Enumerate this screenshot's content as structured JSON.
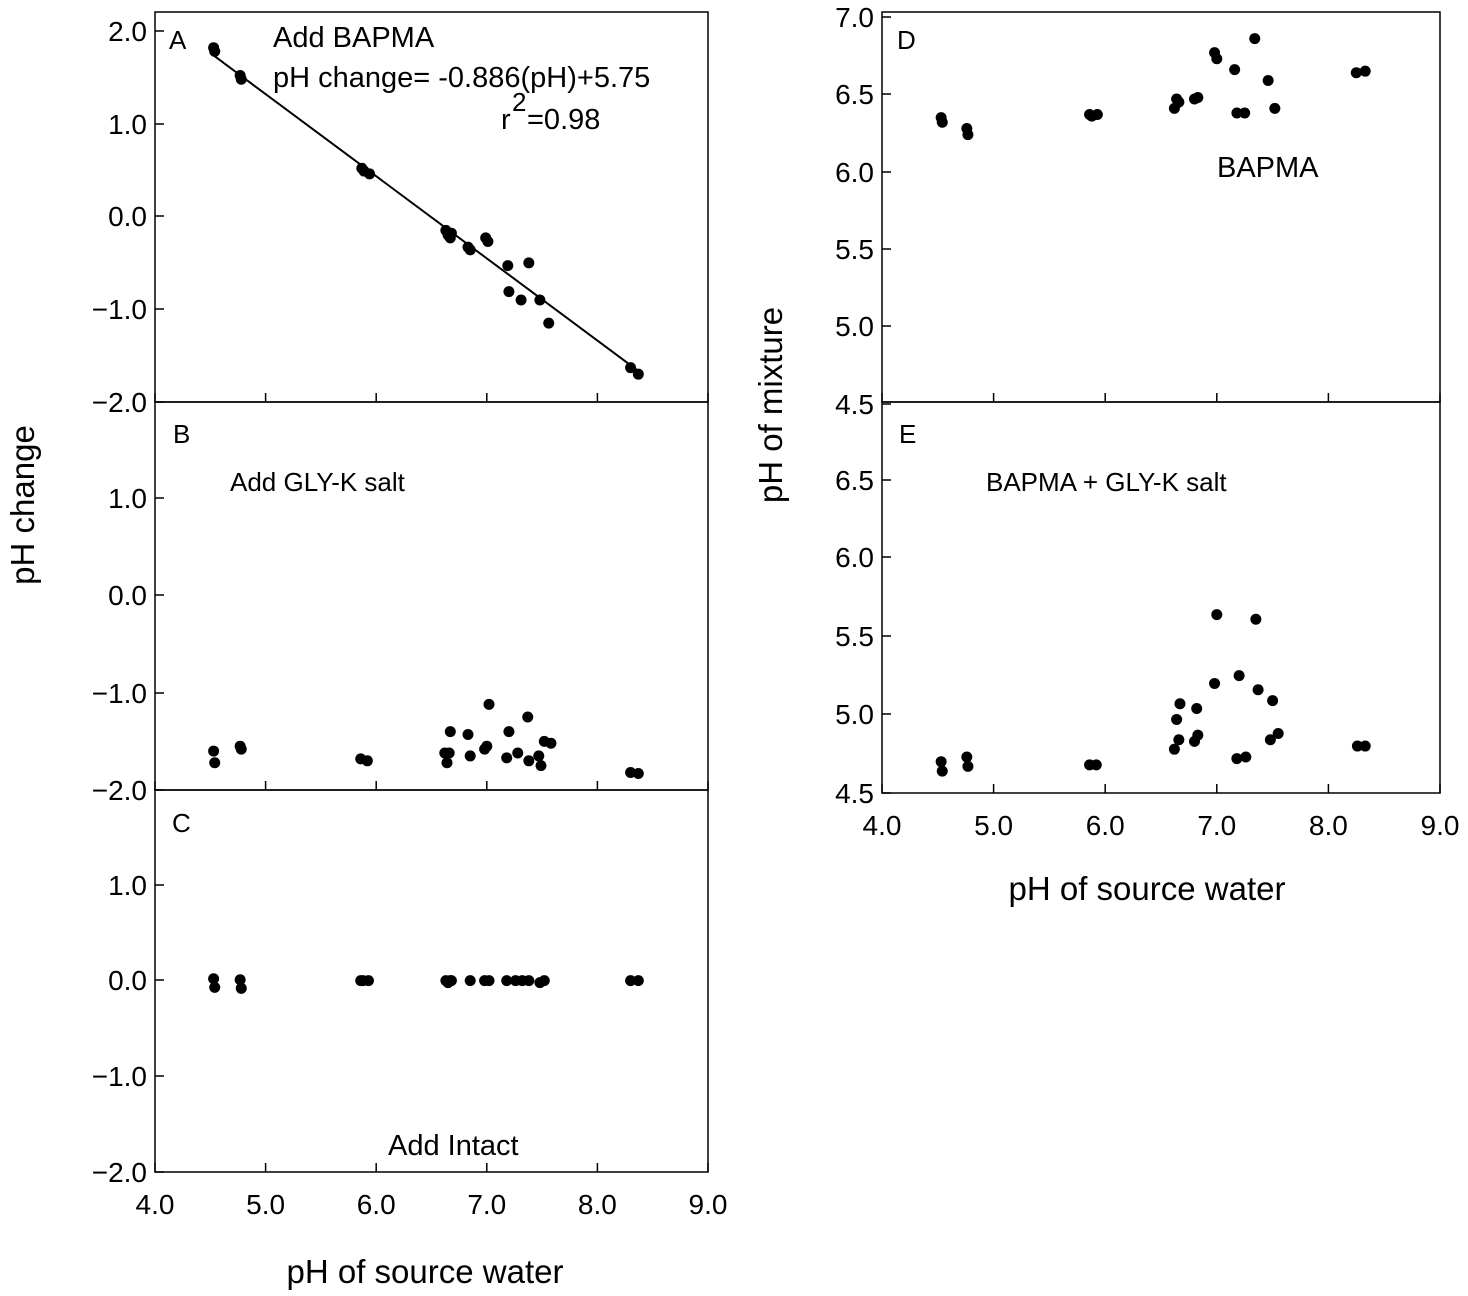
{
  "chart_data": [
    {
      "panel": "A",
      "type": "scatter",
      "panel_label": "A",
      "annotations": [
        "Add BAPMA",
        "pH change= -0.886(pH)+5.75",
        "r",
        "2",
        "=0.98"
      ],
      "ylabel": "pH change",
      "xlim": [
        4.0,
        9.0
      ],
      "ylim": [
        -2.0,
        2.0
      ],
      "yticks": [
        "2.0",
        "1.0",
        "0.0",
        "−1.0",
        "−2.0"
      ],
      "fit_line": {
        "slope": -0.886,
        "intercept": 5.75,
        "x_range": [
          4.5,
          8.4
        ]
      },
      "x": [
        4.53,
        4.54,
        4.77,
        4.78,
        5.87,
        5.89,
        5.94,
        6.63,
        6.65,
        6.67,
        6.68,
        6.83,
        6.85,
        6.99,
        7.01,
        7.19,
        7.2,
        7.31,
        7.38,
        7.48,
        7.56,
        8.3,
        8.37
      ],
      "y": [
        1.82,
        1.78,
        1.52,
        1.48,
        0.52,
        0.49,
        0.46,
        -0.15,
        -0.2,
        -0.23,
        -0.18,
        -0.33,
        -0.36,
        -0.23,
        -0.27,
        -0.53,
        -0.81,
        -0.9,
        -0.5,
        -0.9,
        -1.15,
        -1.63,
        -1.7
      ]
    },
    {
      "panel": "B",
      "type": "scatter",
      "panel_label": "B",
      "annotations": [
        "Add GLY-K salt"
      ],
      "xlim": [
        4.0,
        9.0
      ],
      "ylim": [
        -2.0,
        2.0
      ],
      "yticks": [
        "1.0",
        "0.0",
        "−1.0",
        "−2.0"
      ],
      "x": [
        4.53,
        4.54,
        4.77,
        4.78,
        5.86,
        5.92,
        6.62,
        6.64,
        6.66,
        6.67,
        6.83,
        6.85,
        6.98,
        7.0,
        7.02,
        7.18,
        7.2,
        7.28,
        7.37,
        7.38,
        7.47,
        7.49,
        7.52,
        7.58,
        8.3,
        8.37
      ],
      "y": [
        -1.6,
        -1.72,
        -1.55,
        -1.58,
        -1.68,
        -1.7,
        -1.62,
        -1.72,
        -1.62,
        -1.4,
        -1.43,
        -1.65,
        -1.58,
        -1.55,
        -1.12,
        -1.67,
        -1.4,
        -1.62,
        -1.25,
        -1.7,
        -1.65,
        -1.75,
        -1.5,
        -1.52,
        -1.82,
        -1.83
      ]
    },
    {
      "panel": "C",
      "type": "scatter",
      "panel_label": "C",
      "annotations": [
        "Add Intact"
      ],
      "xlabel": "pH of source water",
      "xlim": [
        4.0,
        9.0
      ],
      "ylim": [
        -2.0,
        2.0
      ],
      "xticks": [
        "4.0",
        "5.0",
        "6.0",
        "7.0",
        "8.0",
        "9.0"
      ],
      "yticks": [
        "1.0",
        "0.0",
        "−1.0",
        "−2.0"
      ],
      "x": [
        4.53,
        4.54,
        4.77,
        4.78,
        5.86,
        5.88,
        5.93,
        6.63,
        6.65,
        6.67,
        6.68,
        6.85,
        6.98,
        7.02,
        7.18,
        7.26,
        7.32,
        7.38,
        7.48,
        7.52,
        8.3,
        8.37
      ],
      "y": [
        0.02,
        -0.07,
        0.01,
        -0.08,
        0.0,
        0.0,
        0.0,
        0.0,
        -0.02,
        0.0,
        0.0,
        0.0,
        0.0,
        0.0,
        0.0,
        0.0,
        0.0,
        0.0,
        -0.02,
        0.0,
        0.0,
        0.0
      ]
    },
    {
      "panel": "D",
      "type": "scatter",
      "panel_label": "D",
      "annotations": [
        "BAPMA"
      ],
      "ylabel": "pH of mixture",
      "xlim": [
        4.0,
        9.0
      ],
      "ylim": [
        4.5,
        7.0
      ],
      "yticks": [
        "7.0",
        "6.5",
        "6.0",
        "5.5",
        "5.0",
        "4.5"
      ],
      "x": [
        4.53,
        4.54,
        4.76,
        4.77,
        5.86,
        5.88,
        5.93,
        6.62,
        6.64,
        6.66,
        6.8,
        6.83,
        6.98,
        7.0,
        7.16,
        7.18,
        7.25,
        7.34,
        7.46,
        7.52,
        8.25,
        8.33
      ],
      "y": [
        6.35,
        6.32,
        6.28,
        6.24,
        6.37,
        6.36,
        6.37,
        6.41,
        6.47,
        6.45,
        6.47,
        6.48,
        6.77,
        6.73,
        6.66,
        6.38,
        6.38,
        6.86,
        6.59,
        6.41,
        6.64,
        6.65
      ]
    },
    {
      "panel": "E",
      "type": "scatter",
      "panel_label": "E",
      "annotations": [
        "BAPMA + GLY-K salt"
      ],
      "xlabel": "pH of source water",
      "xlim": [
        4.0,
        9.0
      ],
      "ylim": [
        4.5,
        7.0
      ],
      "xticks": [
        "4.0",
        "5.0",
        "6.0",
        "7.0",
        "8.0",
        "9.0"
      ],
      "yticks": [
        "6.5",
        "6.0",
        "5.5",
        "5.0",
        "4.5"
      ],
      "x": [
        4.53,
        4.54,
        4.76,
        4.77,
        5.86,
        5.92,
        6.62,
        6.64,
        6.66,
        6.67,
        6.8,
        6.82,
        6.83,
        6.98,
        7.0,
        7.18,
        7.2,
        7.26,
        7.35,
        7.37,
        7.48,
        7.5,
        7.55,
        8.26,
        8.33
      ],
      "y": [
        4.7,
        4.64,
        4.73,
        4.67,
        4.68,
        4.68,
        4.78,
        4.97,
        4.84,
        5.07,
        4.83,
        5.04,
        4.87,
        5.2,
        5.64,
        4.72,
        5.25,
        4.73,
        5.61,
        5.16,
        4.84,
        5.09,
        4.88,
        4.8,
        4.8
      ]
    }
  ]
}
